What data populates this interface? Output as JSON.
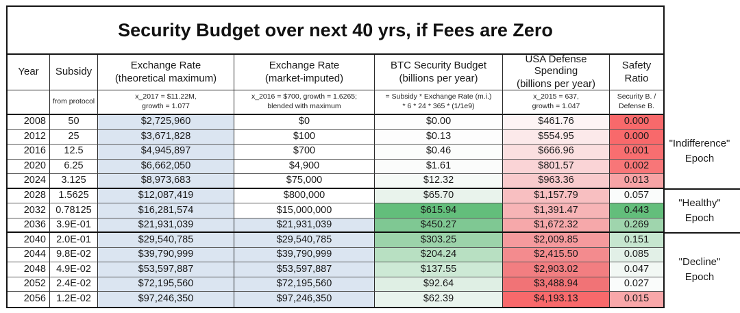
{
  "title": "Security Budget over next 40 yrs, if Fees are Zero",
  "colors": {
    "light_blue": "#dbe5f1",
    "strong_green": "#63be7b",
    "strong_red": "#f8696b",
    "border_dark": "#141414"
  },
  "columns": [
    {
      "id": "year",
      "header1": "Year",
      "header2": "",
      "sub1": "",
      "sub2": ""
    },
    {
      "id": "subsidy",
      "header1": "Subsidy",
      "header2": "",
      "sub1": "from protocol",
      "sub2": ""
    },
    {
      "id": "exchange-rate-max",
      "header1": "Exchange Rate",
      "header2": "(theoretical maximum)",
      "sub1": "x_2017 = $11.22M,",
      "sub2": "growth = 1.077"
    },
    {
      "id": "exchange-rate-market",
      "header1": "Exchange Rate",
      "header2": "(market-imputed)",
      "sub1": "x_2016 = $700, growth = 1.6265;",
      "sub2": "blended with maximum"
    },
    {
      "id": "btc-security-budget",
      "header1": "BTC Security Budget",
      "header2": "(billions per year)",
      "sub1": "= Subsidy *  Exchange Rate (m.i.)",
      "sub2": "* 6 * 24 * 365 * (1/1e9)"
    },
    {
      "id": "usa-defense-spending",
      "header1": "USA Defense Spending",
      "header2": "(billions per year)",
      "sub1": "x_2015 = 637,",
      "sub2": "growth = 1.047"
    },
    {
      "id": "safety-ratio",
      "header1": "Safety",
      "header2": "Ratio",
      "sub1": "Security B. /",
      "sub2": "Defense B."
    }
  ],
  "rows": [
    {
      "year": "2008",
      "subsidy": "50",
      "ex_max": "$2,725,960",
      "ex_mkt": "$0",
      "btc": "$0.00",
      "defense": "$461.76",
      "ratio": "0.000",
      "ex_mkt_bg": "#ffffff",
      "btc_bg": "#fdfdfd",
      "def_bg": "#fdf4f5",
      "ratio_bg": "#f8696b",
      "sep": false
    },
    {
      "year": "2012",
      "subsidy": "25",
      "ex_max": "$3,671,828",
      "ex_mkt": "$100",
      "btc": "$0.13",
      "defense": "$554.95",
      "ratio": "0.000",
      "ex_mkt_bg": "#ffffff",
      "btc_bg": "#fdfdfd",
      "def_bg": "#fce9ea",
      "ratio_bg": "#f8696b",
      "sep": false
    },
    {
      "year": "2016",
      "subsidy": "12.5",
      "ex_max": "$4,945,897",
      "ex_mkt": "$700",
      "btc": "$0.46",
      "defense": "$666.96",
      "ratio": "0.001",
      "ex_mkt_bg": "#ffffff",
      "btc_bg": "#fcfdfc",
      "def_bg": "#fbdfe0",
      "ratio_bg": "#f86e70",
      "sep": false
    },
    {
      "year": "2020",
      "subsidy": "6.25",
      "ex_max": "$6,662,050",
      "ex_mkt": "$4,900",
      "btc": "$1.61",
      "defense": "$801.57",
      "ratio": "0.002",
      "ex_mkt_bg": "#ffffff",
      "btc_bg": "#fbfcfb",
      "def_bg": "#fad4d6",
      "ratio_bg": "#f87678",
      "sep": false
    },
    {
      "year": "2024",
      "subsidy": "3.125",
      "ex_max": "$8,973,683",
      "ex_mkt": "$75,000",
      "btc": "$12.32",
      "defense": "$963.36",
      "ratio": "0.013",
      "ex_mkt_bg": "#ffffff",
      "btc_bg": "#f6faf7",
      "def_bg": "#f9cacc",
      "ratio_bg": "#f7a3a5",
      "sep": true
    },
    {
      "year": "2028",
      "subsidy": "1.5625",
      "ex_max": "$12,087,419",
      "ex_mkt": "$800,000",
      "btc": "$65.70",
      "defense": "$1,157.79",
      "ratio": "0.057",
      "ex_mkt_bg": "#ffffff",
      "btc_bg": "#e9f3ec",
      "def_bg": "#f8bfc1",
      "ratio_bg": "#fafcfb",
      "sep": false
    },
    {
      "year": "2032",
      "subsidy": "0.78125",
      "ex_max": "$16,281,574",
      "ex_mkt": "$15,000,000",
      "btc": "$615.94",
      "defense": "$1,391.47",
      "ratio": "0.443",
      "ex_mkt_bg": "#ffffff",
      "btc_bg": "#63be7b",
      "def_bg": "#f7b4b6",
      "ratio_bg": "#63be7b",
      "sep": false
    },
    {
      "year": "2036",
      "subsidy": "3.9E-01",
      "ex_max": "$21,931,039",
      "ex_mkt": "$21,931,039",
      "btc": "$450.27",
      "defense": "$1,672.32",
      "ratio": "0.269",
      "ex_mkt_bg": "#dbe5f1",
      "btc_bg": "#7fc893",
      "def_bg": "#f6a8aa",
      "ratio_bg": "#9fd5ad",
      "sep": true
    },
    {
      "year": "2040",
      "subsidy": "2.0E-01",
      "ex_max": "$29,540,785",
      "ex_mkt": "$29,540,785",
      "btc": "$303.25",
      "defense": "$2,009.85",
      "ratio": "0.151",
      "ex_mkt_bg": "#dbe5f1",
      "btc_bg": "#9cd3aa",
      "def_bg": "#f59a9d",
      "ratio_bg": "#c6e6cf",
      "sep": false
    },
    {
      "year": "2044",
      "subsidy": "9.8E-02",
      "ex_max": "$39,790,999",
      "ex_mkt": "$39,790,999",
      "btc": "$204.24",
      "defense": "$2,415.50",
      "ratio": "0.085",
      "ex_mkt_bg": "#dbe5f1",
      "btc_bg": "#b8e0c2",
      "def_bg": "#f38b8e",
      "ratio_bg": "#e2f0e7",
      "sep": false
    },
    {
      "year": "2048",
      "subsidy": "4.9E-02",
      "ex_max": "$53,597,887",
      "ex_mkt": "$53,597,887",
      "btc": "$137.55",
      "defense": "$2,903.02",
      "ratio": "0.047",
      "ex_mkt_bg": "#dbe5f1",
      "btc_bg": "#cde9d5",
      "def_bg": "#f27e81",
      "ratio_bg": "#f2f8f4",
      "sep": false
    },
    {
      "year": "2052",
      "subsidy": "2.4E-02",
      "ex_max": "$72,195,560",
      "ex_mkt": "$72,195,560",
      "btc": "$92.64",
      "defense": "$3,488.94",
      "ratio": "0.027",
      "ex_mkt_bg": "#dbe5f1",
      "btc_bg": "#dfefe4",
      "def_bg": "#f17376",
      "ratio_bg": "#fafcfb",
      "sep": false
    },
    {
      "year": "2056",
      "subsidy": "1.2E-02",
      "ex_max": "$97,246,350",
      "ex_mkt": "$97,246,350",
      "btc": "$62.39",
      "defense": "$4,193.13",
      "ratio": "0.015",
      "ex_mkt_bg": "#dbe5f1",
      "btc_bg": "#e9f4ed",
      "def_bg": "#f8696b",
      "ratio_bg": "#f8a7a9",
      "sep": false
    }
  ],
  "epochs": [
    {
      "label": "\"Indifference\"",
      "word": "Epoch"
    },
    {
      "label": "\"Healthy\"",
      "word": "Epoch"
    },
    {
      "label": "\"Decline\"",
      "word": "Epoch"
    }
  ],
  "chart_data": {
    "type": "table",
    "title": "Security Budget over next 40 yrs, if Fees are Zero",
    "categories": [
      2008,
      2012,
      2016,
      2020,
      2024,
      2028,
      2032,
      2036,
      2040,
      2044,
      2048,
      2052,
      2056
    ],
    "series": [
      {
        "name": "Subsidy (from protocol)",
        "values": [
          50,
          25,
          12.5,
          6.25,
          3.125,
          1.5625,
          0.78125,
          0.39,
          0.2,
          0.098,
          0.049,
          0.024,
          0.012
        ]
      },
      {
        "name": "Exchange Rate theoretical maximum ($)",
        "values": [
          2725960,
          3671828,
          4945897,
          6662050,
          8973683,
          12087419,
          16281574,
          21931039,
          29540785,
          39790999,
          53597887,
          72195560,
          97246350
        ]
      },
      {
        "name": "Exchange Rate market-imputed ($)",
        "values": [
          0,
          100,
          700,
          4900,
          75000,
          800000,
          15000000,
          21931039,
          29540785,
          39790999,
          53597887,
          72195560,
          97246350
        ]
      },
      {
        "name": "BTC Security Budget (billions per year)",
        "values": [
          0.0,
          0.13,
          0.46,
          1.61,
          12.32,
          65.7,
          615.94,
          450.27,
          303.25,
          204.24,
          137.55,
          92.64,
          62.39
        ]
      },
      {
        "name": "USA Defense Spending (billions per year)",
        "values": [
          461.76,
          554.95,
          666.96,
          801.57,
          963.36,
          1157.79,
          1391.47,
          1672.32,
          2009.85,
          2415.5,
          2903.02,
          3488.94,
          4193.13
        ]
      },
      {
        "name": "Safety Ratio (Security B. / Defense B.)",
        "values": [
          0.0,
          0.0,
          0.001,
          0.002,
          0.013,
          0.057,
          0.443,
          0.269,
          0.151,
          0.085,
          0.047,
          0.027,
          0.015
        ]
      }
    ],
    "annotations": [
      "\"Indifference\" Epoch: 2008-2024",
      "\"Healthy\" Epoch: 2028-2036",
      "\"Decline\" Epoch: 2040-2056"
    ]
  }
}
